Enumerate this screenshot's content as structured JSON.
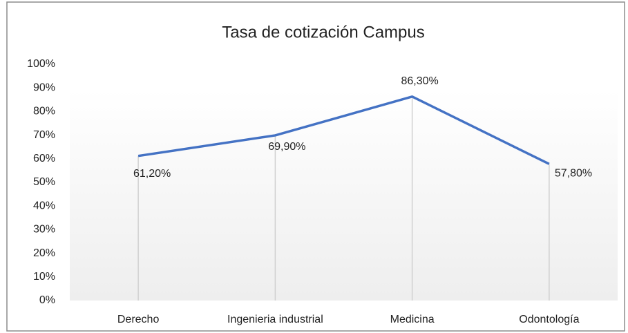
{
  "chart_data": {
    "type": "line",
    "title": "Tasa de cotización Campus",
    "categories": [
      "Derecho",
      "Ingenieria  industrial",
      "Medicina",
      "Odontología"
    ],
    "series": [
      {
        "name": "Tasa de cotización",
        "color": "#4472c4",
        "values": [
          61.2,
          69.9,
          86.3,
          57.8
        ],
        "value_labels": [
          "61,20%",
          "69,90%",
          "86,30%",
          "57,80%"
        ]
      }
    ],
    "ylim": [
      0,
      100
    ],
    "yticks": [
      {
        "value": 0,
        "label": "0%"
      },
      {
        "value": 10,
        "label": "10%"
      },
      {
        "value": 20,
        "label": "20%"
      },
      {
        "value": 30,
        "label": "30%"
      },
      {
        "value": 40,
        "label": "40%"
      },
      {
        "value": 50,
        "label": "50%"
      },
      {
        "value": 60,
        "label": "60%"
      },
      {
        "value": 70,
        "label": "70%"
      },
      {
        "value": 80,
        "label": "80%"
      },
      {
        "value": 90,
        "label": "90%"
      },
      {
        "value": 100,
        "label": "100%"
      }
    ],
    "drop_lines": true
  }
}
